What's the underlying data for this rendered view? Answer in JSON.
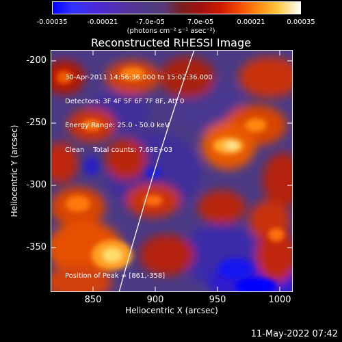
{
  "colorbar": {
    "ticks": [
      "-0.00035",
      "-0.00021",
      "-7.0e-05",
      "7.0e-05",
      "0.00021",
      "0.00035"
    ],
    "units": "(photons cm⁻² s⁻¹ asec⁻²)"
  },
  "plot": {
    "title": "Reconstructed RHESSI Image",
    "xlabel": "Heliocentric X (arcsec)",
    "ylabel": "Heliocentric Y (arcsec)",
    "xticks": [
      "850",
      "900",
      "950",
      "1000"
    ],
    "yticks": [
      "-200",
      "-250",
      "-300",
      "-350"
    ],
    "xlim": [
      815,
      1010
    ],
    "ylim": [
      -385,
      -190
    ],
    "annotations": {
      "line1": "30-Apr-2011 14:56:36.000 to 15:02:36.000",
      "line2": "Detectors: 3F 4F 5F 6F 7F 8F, Att 0",
      "line3": "Energy Range: 25.0 - 50.0 keV",
      "line4": "Clean    Total counts: 7.69E+03",
      "peak": "Position of Peak = [861,-358]"
    }
  },
  "timestamp": "11-May-2022 07:42"
}
